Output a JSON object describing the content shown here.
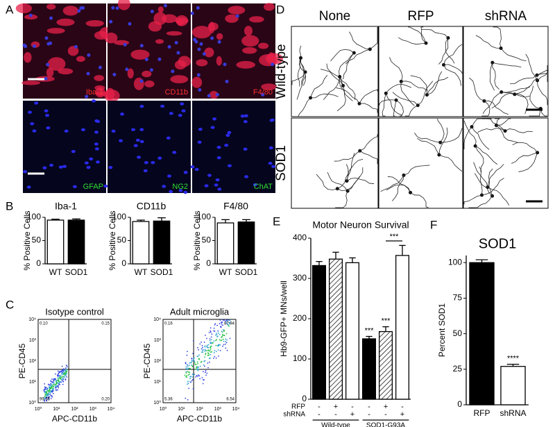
{
  "panel_labels": [
    "A",
    "B",
    "C",
    "D",
    "E",
    "F"
  ],
  "panel_a": {
    "top_labels": [
      "Iba-1",
      "CD11b",
      "F4/80"
    ],
    "bottom_labels": [
      "GFAP",
      "NG2",
      "ChAT"
    ]
  },
  "panel_c": {
    "ticks": [
      "10⁰",
      "10¹",
      "10²",
      "10³",
      "10⁴"
    ],
    "plots": [
      {
        "title": "Isotype control",
        "xlabel": "APC-CD11b",
        "ylabel": "PE-CD45",
        "quadrants": [
          "0.10",
          "0.15",
          "99.55",
          "0.20"
        ]
      },
      {
        "title": "Adult microglia",
        "xlabel": "APC-CD11b",
        "ylabel": "PE-CD45",
        "quadrants": [
          "0.16",
          "87.94",
          "5.36",
          "6.54"
        ]
      }
    ]
  },
  "panel_d": {
    "columns": [
      "None",
      "RFP",
      "shRNA"
    ],
    "rows": [
      "Wild-type",
      "SOD1"
    ]
  },
  "chart_data": [
    {
      "type": "bar",
      "title": "Iba-1",
      "ylabel": "% Positive Cells",
      "categories": [
        "WT",
        "SOD1"
      ],
      "values": [
        94,
        94
      ],
      "errors": [
        2,
        2.5
      ],
      "patterns": [
        "open",
        "solid"
      ],
      "color": "#000000",
      "ylim": [
        0,
        100
      ],
      "yticks": [
        0,
        50,
        100
      ]
    },
    {
      "type": "bar",
      "title": "CD11b",
      "ylabel": "% Positive Cells",
      "categories": [
        "WT",
        "SOD1"
      ],
      "values": [
        91,
        92
      ],
      "errors": [
        3,
        7
      ],
      "patterns": [
        "open",
        "solid"
      ],
      "color": "#000000",
      "ylim": [
        0,
        100
      ],
      "yticks": [
        0,
        50,
        100
      ]
    },
    {
      "type": "bar",
      "title": "F4/80",
      "ylabel": "% Positive Cells",
      "categories": [
        "WT",
        "SOD1"
      ],
      "values": [
        88,
        90
      ],
      "errors": [
        7,
        5
      ],
      "patterns": [
        "open",
        "solid"
      ],
      "color": "#000000",
      "ylim": [
        0,
        100
      ],
      "yticks": [
        0,
        50,
        100
      ]
    },
    {
      "type": "bar",
      "title": "Motor Neuron Survival",
      "ylabel": "Hb9-GFP+ MNs/well",
      "values": [
        332,
        348,
        339,
        150,
        168,
        357
      ],
      "errors": [
        10,
        17,
        12,
        6,
        12,
        25
      ],
      "patterns": [
        "solid",
        "hatched",
        "open",
        "solid",
        "hatched",
        "open"
      ],
      "color": "#000000",
      "ylim": [
        0,
        400
      ],
      "yticks": [
        0,
        100,
        200,
        300,
        400
      ],
      "value_annotations": [
        null,
        null,
        null,
        "***",
        "***",
        null
      ],
      "bracket": "***",
      "rows": [
        {
          "label": "RFP",
          "signs": [
            "-",
            "+",
            "-",
            "-",
            "+",
            "-"
          ]
        },
        {
          "label": "shRNA",
          "signs": [
            "-",
            "-",
            "+",
            "-",
            "-",
            "+"
          ]
        }
      ],
      "groups": [
        "Wild-type",
        "SOD1-G93A"
      ]
    },
    {
      "type": "bar",
      "title": "SOD1",
      "ylabel": "Percent SOD1",
      "categories": [
        "RFP",
        "shRNA"
      ],
      "values": [
        100,
        27
      ],
      "errors": [
        2,
        1.5
      ],
      "patterns": [
        "solid",
        "open"
      ],
      "color": "#000000",
      "ylim": [
        0,
        105
      ],
      "yticks": [
        0,
        25,
        50,
        75,
        100
      ],
      "value_annotations": [
        null,
        "****"
      ]
    }
  ]
}
